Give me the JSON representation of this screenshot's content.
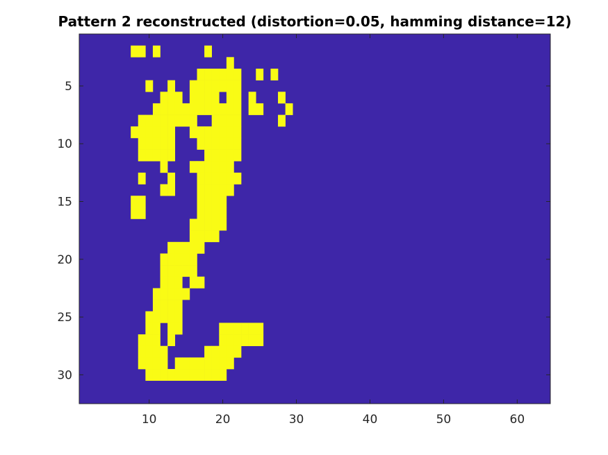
{
  "chart_data": {
    "type": "heatmap",
    "title": "Pattern 2 reconstructed (distortion=0.05, hamming distance=12)",
    "xlabel": "",
    "ylabel": "",
    "xlim": [
      0.5,
      64.5
    ],
    "ylim": [
      0.5,
      32.5
    ],
    "y_direction": "reverse",
    "grid": false,
    "colormap": {
      "0": "#3e26a8",
      "1": "#f9fb15"
    },
    "x_ticks": [
      10,
      20,
      30,
      40,
      50,
      60
    ],
    "y_ticks": [
      5,
      10,
      15,
      20,
      25,
      30
    ],
    "rows": [
      "0000000000000000000000000000000000000000000000000000000000000000",
      "0000000110100000010000000000000000000000000000000000000000000000",
      "0000000000000000000010000000000000000000000000000000000000000000",
      "0000000000000000111111001010000000000000000000000000000000000000",
      "0000000001001001111111000000000000000000000000000000000000000000",
      "0000000000011101111011010001000000000000000000000000000000000000",
      "0000000000111111111111011000100000000000000000000000000000000000",
      "0000000011111111001111000001000000000000000000000000000000000000",
      "0000000111111001111111000000000000000000000000000000000000000000",
      "0000000011111000111111000000000000000000000000000000000000000000",
      "0000000011111000011111000000000000000000000000000000000000000000",
      "0000000000010001111110000000000000000000000000000000000000000000",
      "0000000010001000111111000000000000000000000000000000000000000000",
      "0000000000011000111110000000000000000000000000000000000000000000",
      "0000000110000000111100000000000000000000000000000000000000000000",
      "0000000110000000111100000000000000000000000000000000000000000000",
      "0000000000000001111100000000000000000000000000000000000000000000",
      "0000000000000001111000000000000000000000000000000000000000000000",
      "0000000000001111100000000000000000000000000000000000000000000000",
      "0000000000011111000000000000000000000000000000000000000000000000",
      "0000000000011111000000000000000000000000000000000000000000000000",
      "0000000000011101100000000000000000000000000000000000000000000000",
      "0000000000111110000000000000000000000000000000000000000000000000",
      "0000000000111100000000000000000000000000000000000000000000000000",
      "0000000001111100000000000000000000000000000000000000000000000000",
      "0000000001101100000111111000000000000000000000000000000000000000",
      "0000000011101000000111111000000000000000000000000000000000000000",
      "0000000011110000011111000000000000000000000000000000000000000000",
      "0000000011110111111110000000000000000000000000000000000000000000",
      "0000000001111111111100000000000000000000000000000000000000000000",
      "0000000000000000000000000000000000000000000000000000000000000000",
      "0000000000000000000000000000000000000000000000000000000000000000"
    ]
  }
}
